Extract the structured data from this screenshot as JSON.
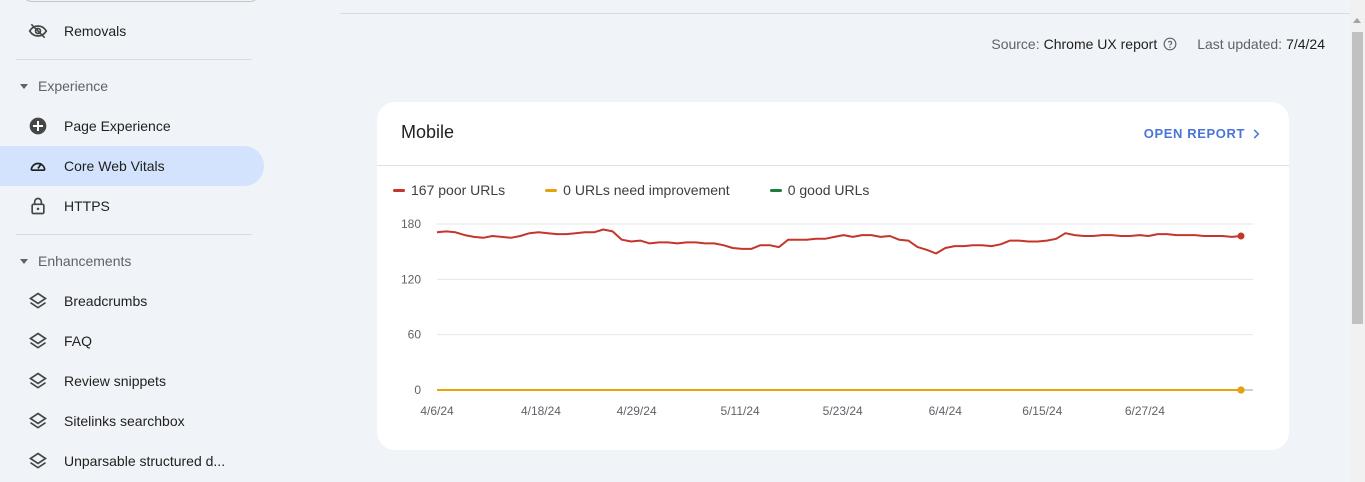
{
  "sidebar": {
    "items_top": [
      {
        "label": "Removals",
        "icon": "eye-off-icon"
      }
    ],
    "sections": [
      {
        "title": "Experience",
        "items": [
          {
            "label": "Page Experience",
            "icon": "plus-circle-icon",
            "active": false
          },
          {
            "label": "Core Web Vitals",
            "icon": "gauge-icon",
            "active": true
          },
          {
            "label": "HTTPS",
            "icon": "lock-icon",
            "active": false
          }
        ]
      },
      {
        "title": "Enhancements",
        "items": [
          {
            "label": "Breadcrumbs",
            "icon": "layers-icon"
          },
          {
            "label": "FAQ",
            "icon": "layers-icon"
          },
          {
            "label": "Review snippets",
            "icon": "layers-icon"
          },
          {
            "label": "Sitelinks searchbox",
            "icon": "layers-icon"
          },
          {
            "label": "Unparsable structured d...",
            "icon": "layers-icon"
          }
        ]
      }
    ]
  },
  "source": {
    "prefix": "Source:",
    "name": "Chrome UX report",
    "updated_prefix": "Last updated:",
    "updated_date": "7/4/24"
  },
  "card": {
    "title": "Mobile",
    "action": "OPEN REPORT"
  },
  "colors": {
    "poor": "#c5352a",
    "needs_improvement": "#e8a20c",
    "good": "#1e7e3e",
    "accent": "#4a74d9",
    "active_nav": "#d3e3fd"
  },
  "chart_data": {
    "type": "line",
    "legend": [
      "167 poor URLs",
      "0 URLs need improvement",
      "0 good URLs"
    ],
    "x_ticks": [
      "4/6/24",
      "4/18/24",
      "4/29/24",
      "5/11/24",
      "5/23/24",
      "6/4/24",
      "6/15/24",
      "6/27/24"
    ],
    "y_ticks": [
      "180",
      "120",
      "60",
      "0"
    ],
    "ylim": [
      0,
      180
    ],
    "series": [
      {
        "name": "167 poor URLs",
        "values": [
          171,
          172,
          171,
          168,
          166,
          165,
          167,
          166,
          165,
          167,
          170,
          171,
          170,
          169,
          169,
          170,
          171,
          171,
          174,
          172,
          163,
          161,
          162,
          159,
          160,
          160,
          159,
          160,
          160,
          159,
          159,
          157,
          154,
          153,
          153,
          157,
          157,
          155,
          163,
          163,
          163,
          164,
          164,
          166,
          168,
          166,
          168,
          168,
          166,
          167,
          163,
          162,
          155,
          152,
          148,
          154,
          156,
          156,
          157,
          157,
          156,
          158,
          162,
          162,
          161,
          161,
          162,
          164,
          170,
          168,
          167,
          167,
          168,
          168,
          167,
          167,
          168,
          167,
          169,
          169,
          168,
          168,
          168,
          167,
          167,
          167,
          166,
          167
        ]
      },
      {
        "name": "0 URLs need improvement",
        "values": [
          0,
          0,
          0,
          0,
          0,
          0,
          0,
          0,
          0,
          0,
          0,
          0,
          0,
          0,
          0,
          0,
          0,
          0,
          0,
          0,
          0,
          0,
          0,
          0,
          0,
          0,
          0,
          0,
          0,
          0,
          0,
          0,
          0,
          0,
          0,
          0,
          0,
          0,
          0,
          0,
          0,
          0,
          0,
          0,
          0,
          0,
          0,
          0,
          0,
          0,
          0,
          0,
          0,
          0,
          0,
          0,
          0,
          0,
          0,
          0,
          0,
          0,
          0,
          0,
          0,
          0,
          0,
          0,
          0,
          0,
          0,
          0,
          0,
          0,
          0,
          0,
          0,
          0,
          0,
          0,
          0,
          0,
          0,
          0,
          0,
          0,
          0,
          0
        ]
      },
      {
        "name": "0 good URLs",
        "values": [
          0,
          0,
          0,
          0,
          0,
          0,
          0,
          0,
          0,
          0,
          0,
          0,
          0,
          0,
          0,
          0,
          0,
          0,
          0,
          0,
          0,
          0,
          0,
          0,
          0,
          0,
          0,
          0,
          0,
          0,
          0,
          0,
          0,
          0,
          0,
          0,
          0,
          0,
          0,
          0,
          0,
          0,
          0,
          0,
          0,
          0,
          0,
          0,
          0,
          0,
          0,
          0,
          0,
          0,
          0,
          0,
          0,
          0,
          0,
          0,
          0,
          0,
          0,
          0,
          0,
          0,
          0,
          0,
          0,
          0,
          0,
          0,
          0,
          0,
          0,
          0,
          0,
          0,
          0,
          0,
          0,
          0,
          0,
          0,
          0,
          0,
          0,
          0
        ]
      }
    ],
    "grid": true
  }
}
